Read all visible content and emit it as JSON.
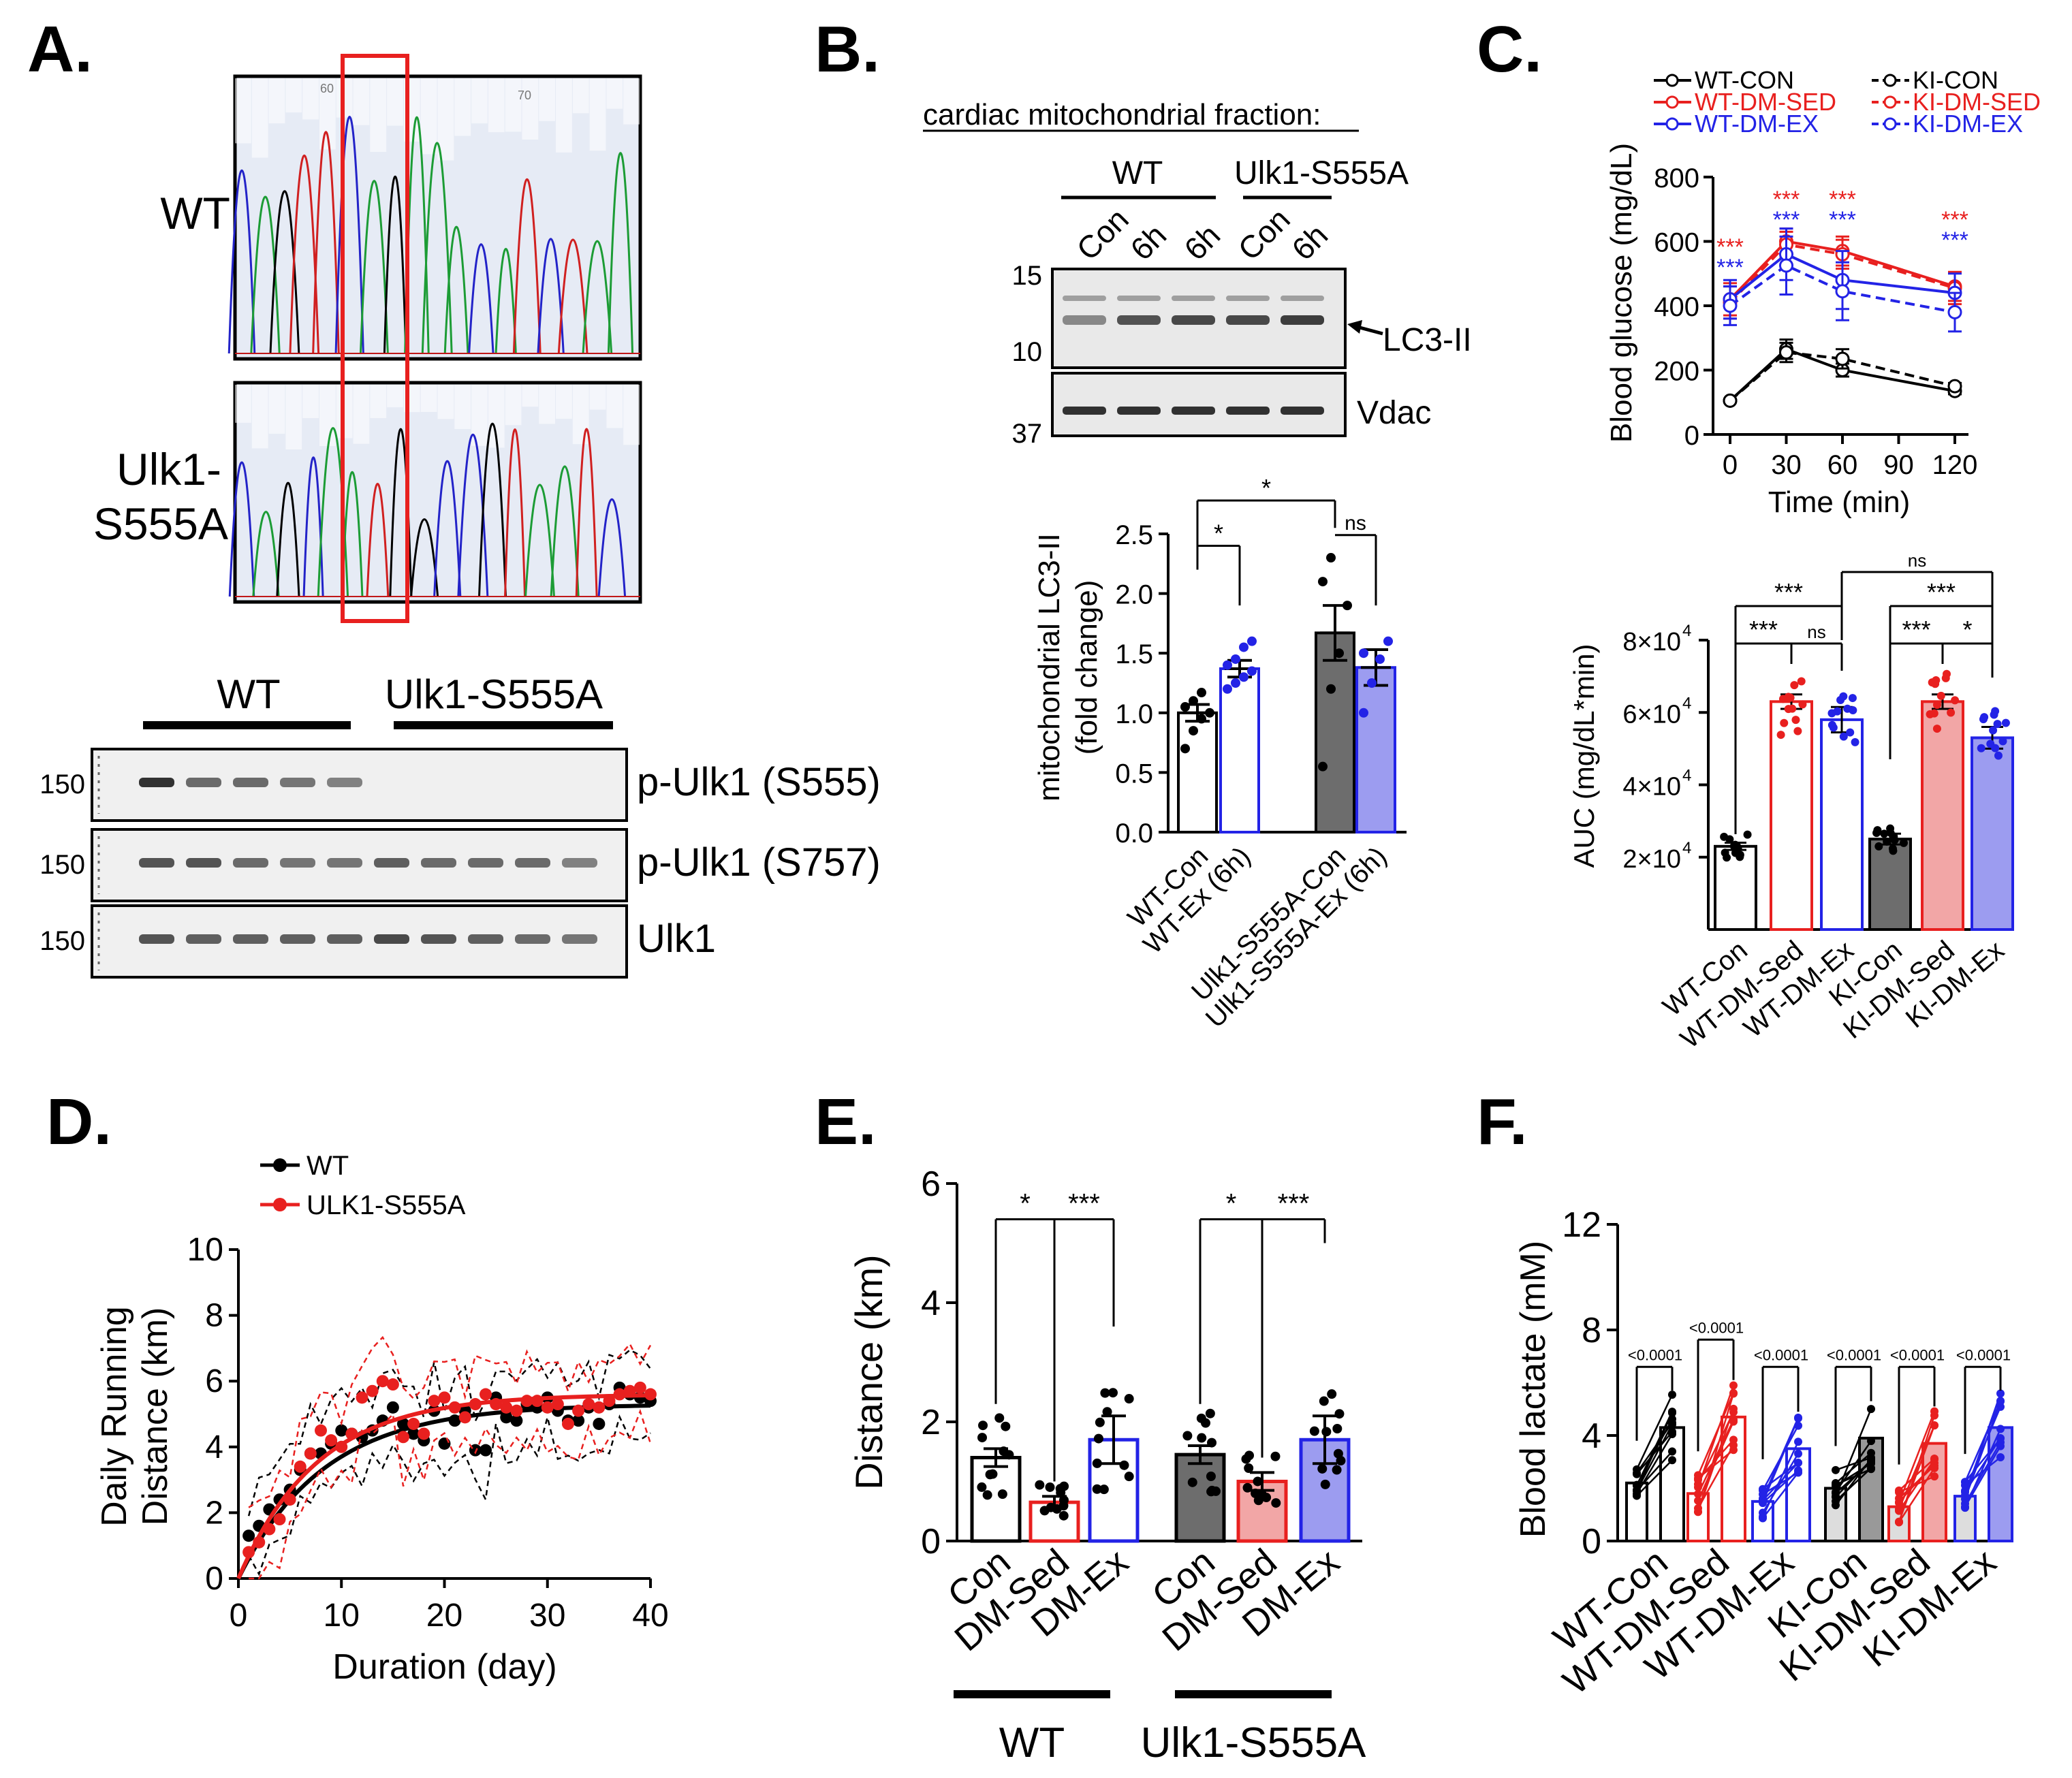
{
  "colors": {
    "wt": "#000000",
    "red": "#e8201f",
    "blue": "#2323e6",
    "gray": "#6d6d6d",
    "lightred": "#f2a6a6",
    "lightblue": "#9c9cf0",
    "dkgray": "#555555",
    "trace_green": "#1c9c35"
  },
  "panels": {
    "A": "A.",
    "B": "B.",
    "C": "C.",
    "D": "D.",
    "E": "E.",
    "F": "F."
  },
  "panelA": {
    "chrom_wt": "WT",
    "chrom_ki_1": "Ulk1-",
    "chrom_ki_2": "S555A",
    "ticks": [
      "60",
      "70"
    ],
    "blot_group_wt": "WT",
    "blot_group_ki": "Ulk1-S555A",
    "blot_rows": [
      {
        "mw": "150",
        "label": "p-Ulk1 (S555)",
        "wt": [
          0.85,
          0.6,
          0.6,
          0.55,
          0.5
        ],
        "ki": [
          0,
          0,
          0,
          0,
          0
        ]
      },
      {
        "mw": "150",
        "label": "p-Ulk1 (S757)",
        "wt": [
          0.7,
          0.7,
          0.6,
          0.55,
          0.55
        ],
        "ki": [
          0.65,
          0.6,
          0.6,
          0.6,
          0.5
        ]
      },
      {
        "mw": "150",
        "label": "Ulk1",
        "wt": [
          0.7,
          0.65,
          0.65,
          0.65,
          0.65
        ],
        "ki": [
          0.75,
          0.7,
          0.65,
          0.6,
          0.55
        ]
      }
    ]
  },
  "panelB": {
    "header": "cardiac mitochondrial fraction:",
    "group_wt": "WT",
    "group_ki": "Ulk1-S555A",
    "lanes": [
      "Con",
      "6h",
      "6h",
      "Con",
      "6h"
    ],
    "mw": [
      "15",
      "10",
      "37"
    ],
    "band_lc3": "LC3-II",
    "band_vdac": "Vdac",
    "chart_data": {
      "type": "bar",
      "ylabel": "mitochondrial LC3-II (fold change)",
      "ylabel_1": "mitochondrial LC3-II",
      "ylabel_2": "(fold change)",
      "ylim": [
        0,
        2.5
      ],
      "yticks": [
        "0.0",
        "0.5",
        "1.0",
        "1.5",
        "2.0",
        "2.5"
      ],
      "categories": [
        "WT-Con",
        "WT-Ex (6h)",
        "Ulk1-S555A-Con",
        "Ulk1-S555A-Ex (6h)"
      ],
      "values": [
        1.0,
        1.37,
        1.67,
        1.38
      ],
      "errors": [
        0.07,
        0.07,
        0.23,
        0.15
      ],
      "points": [
        [
          0.7,
          0.85,
          0.95,
          1.0,
          1.05,
          1.1,
          1.17
        ],
        [
          1.2,
          1.25,
          1.3,
          1.35,
          1.4,
          1.45,
          1.55,
          1.6
        ],
        [
          0.55,
          1.2,
          1.5,
          1.9,
          2.1,
          2.3
        ],
        [
          1.0,
          1.25,
          1.45,
          1.6,
          1.5
        ]
      ],
      "annotations": [
        "*",
        "*",
        "ns"
      ]
    }
  },
  "panelC": {
    "line_chart": {
      "type": "line",
      "ylabel": "Blood glucose (mg/dL)",
      "xlabel": "Time (min)",
      "ylim": [
        0,
        800
      ],
      "yticks": [
        "0",
        "200",
        "400",
        "600",
        "800"
      ],
      "x": [
        0,
        30,
        60,
        90,
        120
      ],
      "xticks": [
        "0",
        "30",
        "60",
        "90",
        "120"
      ],
      "series": [
        {
          "name": "WT-CON",
          "color": "#000000",
          "dash": false,
          "values": [
            105,
            265,
            200,
            null,
            135
          ],
          "errors": [
            5,
            30,
            20,
            null,
            10
          ]
        },
        {
          "name": "KI-CON",
          "color": "#000000",
          "dash": true,
          "values": [
            105,
            255,
            235,
            null,
            150
          ],
          "errors": [
            5,
            30,
            30,
            null,
            10
          ]
        },
        {
          "name": "WT-DM-SED",
          "color": "#e8201f",
          "dash": false,
          "values": [
            420,
            600,
            570,
            null,
            460
          ],
          "errors": [
            50,
            40,
            45,
            null,
            45
          ]
        },
        {
          "name": "KI-DM-SED",
          "color": "#e8201f",
          "dash": true,
          "values": [
            410,
            590,
            560,
            null,
            455
          ],
          "errors": [
            50,
            40,
            45,
            null,
            50
          ]
        },
        {
          "name": "WT-DM-EX",
          "color": "#2323e6",
          "dash": false,
          "values": [
            420,
            560,
            480,
            null,
            440
          ],
          "errors": [
            60,
            80,
            90,
            null,
            60
          ]
        },
        {
          "name": "KI-DM-EX",
          "color": "#2323e6",
          "dash": true,
          "values": [
            400,
            525,
            445,
            null,
            380
          ],
          "errors": [
            60,
            90,
            90,
            null,
            60
          ]
        }
      ],
      "sig_red": [
        "***",
        "***",
        "***",
        "***"
      ],
      "sig_blue": [
        "***",
        "***",
        "***",
        "***"
      ]
    },
    "bar_chart": {
      "type": "bar",
      "ylabel": "AUC (mg/dL*min)",
      "ylim": [
        0,
        80000
      ],
      "yticks": [
        "2×10",
        "4×10",
        "6×10",
        "8×10"
      ],
      "ytick_exp": "4",
      "categories": [
        "WT-Con",
        "WT-DM-Sed",
        "WT-DM-Ex",
        "KI-Con",
        "KI-DM-Sed",
        "KI-DM-Ex"
      ],
      "values": [
        23000,
        63000,
        58000,
        25000,
        63000,
        53000
      ],
      "errors": [
        1000,
        2000,
        3500,
        1500,
        2000,
        3000
      ],
      "annotations": [
        "***",
        "***",
        "ns",
        "***",
        "***",
        "*",
        "ns"
      ]
    }
  },
  "panelD": {
    "chart_data": {
      "type": "line",
      "ylabel_1": "Daily Running",
      "ylabel_2": "Distance (km)",
      "xlabel": "Duration (day)",
      "xlim": [
        0,
        40
      ],
      "ylim": [
        0,
        10
      ],
      "xticks": [
        "0",
        "10",
        "20",
        "30",
        "40"
      ],
      "yticks": [
        "0",
        "2",
        "4",
        "6",
        "8",
        "10"
      ],
      "legend": [
        "WT",
        "ULK1-S555A"
      ],
      "series": [
        {
          "name": "WT",
          "x": [
            1,
            2,
            3,
            4,
            5,
            6,
            7,
            8,
            9,
            10,
            11,
            12,
            13,
            14,
            15,
            16,
            17,
            18,
            19,
            20,
            21,
            22,
            23,
            24,
            25,
            26,
            27,
            28,
            29,
            30,
            31,
            32,
            33,
            34,
            35,
            36,
            37,
            38,
            39,
            40
          ],
          "values": [
            1.3,
            1.6,
            2.1,
            2.4,
            2.7,
            3.3,
            3.8,
            3.8,
            4.1,
            4.5,
            4.4,
            4.3,
            4.5,
            4.8,
            5.2,
            4.7,
            4.4,
            4.2,
            5.1,
            4.1,
            4.8,
            5.1,
            3.9,
            3.9,
            5.5,
            4.9,
            4.8,
            5.3,
            5.2,
            5.5,
            5.1,
            4.8,
            4.8,
            5.2,
            4.7,
            5.3,
            5.8,
            5.6,
            5.5,
            5.4
          ]
        },
        {
          "name": "ULK1-S555A",
          "x": [
            1,
            2,
            3,
            4,
            5,
            6,
            7,
            8,
            9,
            10,
            11,
            12,
            13,
            14,
            15,
            16,
            17,
            18,
            19,
            20,
            21,
            22,
            23,
            24,
            25,
            26,
            27,
            28,
            29,
            30,
            31,
            32,
            33,
            34,
            35,
            36,
            37,
            38,
            39,
            40
          ],
          "values": [
            0.8,
            1.1,
            1.5,
            1.8,
            2.4,
            3.4,
            3.8,
            4.5,
            4.2,
            4.0,
            4.4,
            5.5,
            5.7,
            6.0,
            5.9,
            4.3,
            4.7,
            4.4,
            5.4,
            5.5,
            5.2,
            4.9,
            5.3,
            5.6,
            5.3,
            5.2,
            5.1,
            5.4,
            5.4,
            5.2,
            5.3,
            4.7,
            5.1,
            5.3,
            5.2,
            5.4,
            5.6,
            5.7,
            5.8,
            5.6
          ]
        }
      ]
    }
  },
  "panelE": {
    "chart_data": {
      "type": "bar",
      "ylabel": "Distance (km)",
      "ylim": [
        0,
        6
      ],
      "yticks": [
        "0",
        "2",
        "4",
        "6"
      ],
      "categories": [
        "Con",
        "DM-Sed",
        "DM-Ex",
        "Con",
        "DM-Sed",
        "DM-Ex"
      ],
      "groups": [
        "WT",
        "Ulk1-S555A"
      ],
      "values": [
        1.4,
        0.65,
        1.7,
        1.45,
        1.0,
        1.7
      ],
      "errors": [
        0.15,
        0.1,
        0.4,
        0.15,
        0.15,
        0.4
      ],
      "annotations": [
        "*",
        "***",
        "*",
        "***"
      ]
    }
  },
  "panelF": {
    "chart_data": {
      "type": "bar",
      "ylabel": "Blood lactate (mM)",
      "ylim": [
        0,
        12
      ],
      "yticks": [
        "0",
        "4",
        "8",
        "12"
      ],
      "categories": [
        "WT-Con",
        "WT-DM-Sed",
        "WT-DM-Ex",
        "KI-Con",
        "KI-DM-Sed",
        "KI-DM-Ex"
      ],
      "pre": [
        2.2,
        1.8,
        1.5,
        2.0,
        1.3,
        1.7
      ],
      "post": [
        4.3,
        4.7,
        3.5,
        3.9,
        3.7,
        4.3
      ],
      "p_values": [
        "<0.0001",
        "<0.0001",
        "<0.0001",
        "<0.0001",
        "<0.0001",
        "<0.0001"
      ]
    }
  }
}
